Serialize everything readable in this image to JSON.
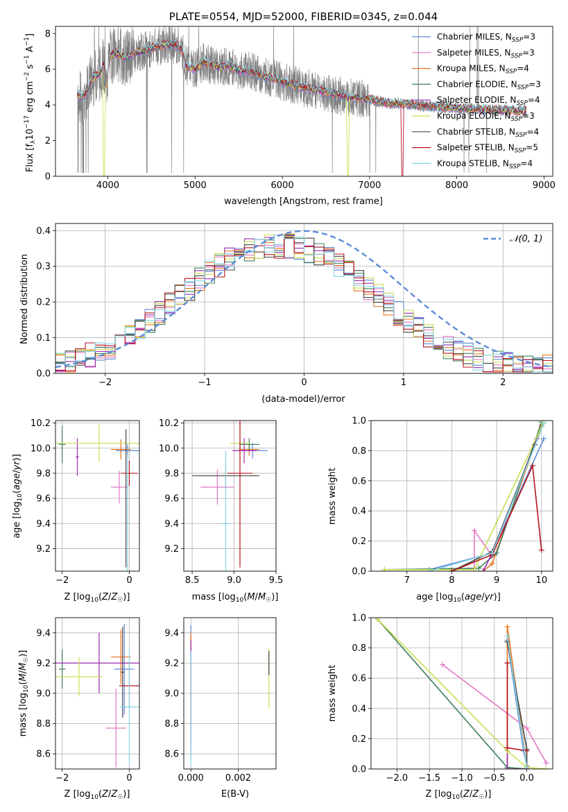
{
  "palette": [
    "#5b8bd6",
    "#e377c2",
    "#e8741c",
    "#3f7f5a",
    "#9a2bb0",
    "#c8e052",
    "#444444",
    "#b5121b",
    "#84d4e8"
  ],
  "chart_data": [
    {
      "id": "spectrum",
      "type": "line",
      "title": "PLATE=0554, MJD=52000, FIBERID=0345, z=0.044",
      "xlabel": "wavelength [Angstrom, rest frame]",
      "ylabel": "Flux [f_λ 10^-17 erg cm^-2 s^-1 A^-1]",
      "xlim": [
        3400,
        9100
      ],
      "ylim": [
        0,
        8.4
      ],
      "xticks": [
        "4000",
        "5000",
        "6000",
        "7000",
        "8000",
        "9000"
      ],
      "yticks": [
        "0",
        "2",
        "4",
        "6",
        "8"
      ],
      "grid": false,
      "legend_position": "upper-right",
      "data_color": "#808080",
      "legend": [
        {
          "label": "Chabrier MILES, N",
          "sub": "SSP",
          "tail": "=3"
        },
        {
          "label": "Salpeter MILES, N",
          "sub": "SSP",
          "tail": "=3"
        },
        {
          "label": "Kroupa MILES, N",
          "sub": "SSP",
          "tail": "=4"
        },
        {
          "label": "Chabrier ELODIE, N",
          "sub": "SSP",
          "tail": "=3"
        },
        {
          "label": "Salpeter ELODIE, N",
          "sub": "SSP",
          "tail": "=4"
        },
        {
          "label": "Kroupa ELODIE, N",
          "sub": "SSP",
          "tail": "=3"
        },
        {
          "label": "Chabrier STELIB, N",
          "sub": "SSP",
          "tail": "=4"
        },
        {
          "label": "Salpeter STELIB, N",
          "sub": "SSP",
          "tail": "=5"
        },
        {
          "label": "Kroupa STELIB, N",
          "sub": "SSP",
          "tail": "=4"
        }
      ],
      "model_knots": {
        "x": [
          3650,
          3700,
          3760,
          3800,
          3850,
          3900,
          3950,
          3980,
          4020,
          4100,
          4200,
          4300,
          4400,
          4500,
          4600,
          4700,
          4800,
          4860,
          4900,
          5000,
          5100,
          5200,
          5300,
          5400,
          5500,
          5600,
          5800,
          6000,
          6200,
          6400,
          6600,
          6800,
          7000,
          7200,
          7400,
          7600,
          7800,
          8000,
          8200,
          8400,
          8600,
          8800
        ],
        "y": [
          4.6,
          4.4,
          4.7,
          5.3,
          5.6,
          5.7,
          6.2,
          4.9,
          6.7,
          6.9,
          6.6,
          6.9,
          7.0,
          7.2,
          7.3,
          7.4,
          7.35,
          7.0,
          6.2,
          6.0,
          6.4,
          6.2,
          6.1,
          6.2,
          5.9,
          5.95,
          5.6,
          5.3,
          5.0,
          4.85,
          4.6,
          4.4,
          4.3,
          4.1,
          4.05,
          3.95,
          3.9,
          3.82,
          3.75,
          3.72,
          3.68,
          3.65
        ]
      },
      "dropouts": [
        {
          "x": 3960,
          "y": 0.0,
          "series": "Kroupa ELODIE"
        },
        {
          "x": 6750,
          "y": 0.0,
          "series": "Kroupa ELODIE"
        },
        {
          "x": 7380,
          "y": 0.0,
          "series": "Salpeter STELIB"
        }
      ]
    },
    {
      "id": "residuals",
      "type": "step-histogram",
      "xlabel": "(data-model)/error",
      "ylabel": "Normed distribution",
      "xlim": [
        -2.5,
        2.5
      ],
      "ylim": [
        0,
        0.42
      ],
      "xticks": [
        "−2",
        "−1",
        "0",
        "1",
        "2"
      ],
      "yticks": [
        "0.0",
        "0.1",
        "0.2",
        "0.3",
        "0.4"
      ],
      "grid": true,
      "reference": {
        "label": "𝒩(0, 1)",
        "mean": 0,
        "sigma": 1,
        "color": "#5b8bd6",
        "style": "dashed"
      },
      "bin_width": 0.1,
      "reference_profile": [
        0.018,
        0.024,
        0.032,
        0.042,
        0.054,
        0.068,
        0.086,
        0.106,
        0.128,
        0.152,
        0.178,
        0.205,
        0.233,
        0.26,
        0.286,
        0.311,
        0.334,
        0.354,
        0.37,
        0.383,
        0.392,
        0.397,
        0.398,
        0.397,
        0.392,
        0.383,
        0.37,
        0.354,
        0.334,
        0.311,
        0.286,
        0.26,
        0.233,
        0.205,
        0.178,
        0.152,
        0.128,
        0.106,
        0.086,
        0.068,
        0.054,
        0.042,
        0.032,
        0.024,
        0.018,
        0.014,
        0.011,
        0.009,
        0.007,
        0.006
      ]
    },
    {
      "id": "z-vs-age",
      "type": "errorbar",
      "xlabel": "Z [log10(Z/Z☉)]",
      "ylabel": "age [log10(age/yr)]",
      "xlim": [
        -2.2,
        0.3
      ],
      "ylim": [
        9.02,
        10.22
      ],
      "xticks": [
        "−2",
        "0"
      ],
      "yticks": [
        "9.2",
        "9.4",
        "9.6",
        "9.8",
        "10.0",
        "10.2"
      ],
      "grid": true,
      "points": [
        {
          "x": -0.05,
          "y": 9.98,
          "xerr": 0.35,
          "yerr": 0.05
        },
        {
          "x": -0.3,
          "y": 9.69,
          "xerr": 0.25,
          "yerr": 0.13
        },
        {
          "x": -0.25,
          "y": 9.99,
          "xerr": 0.3,
          "yerr": 0.08
        },
        {
          "x": -2.0,
          "y": 10.03,
          "xerr": 0.1,
          "yerr": 0.15
        },
        {
          "x": -1.55,
          "y": 9.93,
          "xerr": 0.05,
          "yerr": 0.15
        },
        {
          "x": -0.9,
          "y": 10.04,
          "xerr": 1.3,
          "yerr": 0.15
        },
        {
          "x": -0.1,
          "y": 9.6,
          "xerr": 0.02,
          "yerr": 0.55
        },
        {
          "x": 0.0,
          "y": 9.8,
          "xerr": 0.25,
          "yerr": 0.1
        },
        {
          "x": -0.05,
          "y": 9.4,
          "xerr": 0.02,
          "yerr": 0.55
        }
      ]
    },
    {
      "id": "mass-vs-age",
      "type": "errorbar",
      "xlabel": "mass [log10(M/M☉)]",
      "ylabel": "",
      "xlim": [
        8.4,
        9.5
      ],
      "ylim": [
        9.02,
        10.22
      ],
      "xticks": [
        "8.5",
        "9.0",
        "9.5"
      ],
      "yticks": [
        "9.2",
        "9.4",
        "9.6",
        "9.8",
        "10.0",
        "10.2"
      ],
      "grid": true,
      "points": [
        {
          "x": 9.22,
          "y": 9.98,
          "xerr": 0.18,
          "yerr": 0.06
        },
        {
          "x": 8.8,
          "y": 9.69,
          "xerr": 0.2,
          "yerr": 0.14
        },
        {
          "x": 9.18,
          "y": 9.99,
          "xerr": 0.12,
          "yerr": 0.05
        },
        {
          "x": 9.18,
          "y": 10.03,
          "xerr": 0.12,
          "yerr": 0.05
        },
        {
          "x": 9.12,
          "y": 9.98,
          "xerr": 0.14,
          "yerr": 0.1
        },
        {
          "x": 9.07,
          "y": 10.04,
          "xerr": 0.12,
          "yerr": 0.15
        },
        {
          "x": 8.9,
          "y": 9.78,
          "xerr": 0.4,
          "yerr": 0.1
        },
        {
          "x": 9.07,
          "y": 9.8,
          "xerr": 0.15,
          "yerr": 0.75
        },
        {
          "x": 8.9,
          "y": 9.4,
          "xerr": 0.05,
          "yerr": 0.58
        }
      ]
    },
    {
      "id": "age-vs-weight",
      "type": "line",
      "xlabel": "age [log10(age/yr)]",
      "ylabel": "mass weight",
      "xlim": [
        6.2,
        10.25
      ],
      "ylim": [
        0,
        1
      ],
      "xticks": [
        "7",
        "8",
        "9",
        "10"
      ],
      "yticks": [
        "0.0",
        "0.2",
        "0.4",
        "0.6",
        "0.8",
        "1.0"
      ],
      "grid": true,
      "series": [
        {
          "x": [
            7.5,
            8.9,
            10.05
          ],
          "y": [
            0.01,
            0.12,
            0.88
          ]
        },
        {
          "x": [
            8.5,
            8.5,
            8.9,
            10.0
          ],
          "y": [
            0.0,
            0.27,
            0.1,
            0.97
          ]
        },
        {
          "x": [
            8.7,
            8.9,
            10.0
          ],
          "y": [
            0.0,
            0.05,
            0.96
          ]
        },
        {
          "x": [
            6.5,
            8.6,
            9.0,
            10.0
          ],
          "y": [
            0.01,
            0.02,
            0.12,
            0.99
          ]
        },
        {
          "x": [
            8.7,
            8.9,
            9.9
          ],
          "y": [
            0.0,
            0.12,
            0.88
          ]
        },
        {
          "x": [
            6.5,
            8.5,
            10.05
          ],
          "y": [
            0.01,
            0.01,
            0.99
          ]
        },
        {
          "x": [
            8.0,
            8.9,
            9.85
          ],
          "y": [
            0.0,
            0.13,
            0.84
          ]
        },
        {
          "x": [
            8.0,
            8.9,
            9.8,
            10.0
          ],
          "y": [
            0.0,
            0.11,
            0.7,
            0.14
          ]
        },
        {
          "x": [
            7.5,
            8.9,
            10.05
          ],
          "y": [
            0.0,
            0.12,
            0.98
          ]
        }
      ]
    },
    {
      "id": "z-vs-mass",
      "type": "errorbar",
      "xlabel": "Z [log10(Z/Z☉)]",
      "ylabel": "mass [log10(M/M☉)]",
      "xlim": [
        -2.2,
        0.3
      ],
      "ylim": [
        8.5,
        9.5
      ],
      "xticks": [
        "−2",
        "0"
      ],
      "yticks": [
        "8.6",
        "8.8",
        "9.0",
        "9.2",
        "9.4"
      ],
      "grid": true,
      "points": [
        {
          "x": -0.15,
          "y": 9.16,
          "xerr": 0.3,
          "yerr": 0.3
        },
        {
          "x": -0.4,
          "y": 8.77,
          "xerr": 0.3,
          "yerr": 0.26
        },
        {
          "x": -0.25,
          "y": 9.24,
          "xerr": 0.3,
          "yerr": 0.18
        },
        {
          "x": -2.0,
          "y": 9.16,
          "xerr": 0.1,
          "yerr": 0.13
        },
        {
          "x": -0.9,
          "y": 9.2,
          "xerr": 1.3,
          "yerr": 0.2
        },
        {
          "x": -1.5,
          "y": 9.11,
          "xerr": 0.7,
          "yerr": 0.13
        },
        {
          "x": -0.2,
          "y": 9.14,
          "xerr": 0.05,
          "yerr": 0.3
        },
        {
          "x": 0.0,
          "y": 9.05,
          "xerr": 0.3,
          "yerr": 0.15
        },
        {
          "x": 0.0,
          "y": 8.91,
          "xerr": 0.3,
          "yerr": 0.38
        }
      ]
    },
    {
      "id": "ebv-vs-mass",
      "type": "errorbar",
      "xlabel": "E(B-V)",
      "ylabel": "",
      "xlim": [
        -0.0003,
        0.0036
      ],
      "ylim": [
        8.5,
        9.5
      ],
      "xticks": [
        "0.000",
        "0.002"
      ],
      "yticks": [
        "8.6",
        "8.8",
        "9.0",
        "9.2",
        "9.4"
      ],
      "grid": true,
      "points": [
        {
          "x": 0.0,
          "y": 9.1,
          "xerr": 0.0,
          "yerr": 0.35
        },
        {
          "x": 0.0,
          "y": 9.0,
          "xerr": 0.0,
          "yerr": 0.4
        },
        {
          "x": 0.0,
          "y": 9.2,
          "xerr": 0.0,
          "yerr": 0.2
        },
        {
          "x": 0.0,
          "y": 9.1,
          "xerr": 0.0,
          "yerr": 0.2
        },
        {
          "x": 0.0,
          "y": 9.0,
          "xerr": 0.0,
          "yerr": 0.35
        },
        {
          "x": 0.0033,
          "y": 9.1,
          "xerr": 0.0,
          "yerr": 0.2
        },
        {
          "x": 0.0033,
          "y": 9.2,
          "xerr": 0.0,
          "yerr": 0.08
        },
        {
          "x": 0.0,
          "y": 9.0,
          "xerr": 0.0,
          "yerr": 0.18
        },
        {
          "x": 0.0,
          "y": 8.9,
          "xerr": 0.0,
          "yerr": 0.38
        }
      ]
    },
    {
      "id": "z-vs-weight",
      "type": "line",
      "xlabel": "Z [log10(Z/Z☉)]",
      "ylabel": "mass weight",
      "xlim": [
        -2.4,
        0.4
      ],
      "ylim": [
        0,
        1
      ],
      "xticks": [
        "−2.0",
        "−1.5",
        "−1.0",
        "−0.5",
        "0.0"
      ],
      "yticks": [
        "0.0",
        "0.2",
        "0.4",
        "0.6",
        "0.8",
        "1.0"
      ],
      "grid": true,
      "series": [
        {
          "x": [
            -0.3,
            -0.05,
            0.0
          ],
          "y": [
            0.85,
            0.12,
            0.02
          ]
        },
        {
          "x": [
            -1.3,
            0.0,
            0.3
          ],
          "y": [
            0.69,
            0.27,
            0.04
          ]
        },
        {
          "x": [
            -0.3,
            -0.3,
            0.0
          ],
          "y": [
            0.0,
            0.94,
            0.02
          ]
        },
        {
          "x": [
            -2.3,
            -0.3,
            0.0
          ],
          "y": [
            0.99,
            0.01,
            0.0
          ]
        },
        {
          "x": [
            -0.3,
            -0.3,
            0.0
          ],
          "y": [
            0.12,
            0.0,
            0.0
          ]
        },
        {
          "x": [
            -2.3,
            -0.3,
            0.0,
            0.3
          ],
          "y": [
            0.99,
            0.12,
            0.01,
            0.0
          ]
        },
        {
          "x": [
            -0.3,
            0.0,
            0.0
          ],
          "y": [
            0.84,
            0.13,
            0.0
          ]
        },
        {
          "x": [
            -0.3,
            -0.3,
            0.0
          ],
          "y": [
            0.7,
            0.14,
            0.12
          ]
        },
        {
          "x": [
            -0.3,
            0.0
          ],
          "y": [
            0.88,
            0.01
          ]
        }
      ]
    }
  ]
}
